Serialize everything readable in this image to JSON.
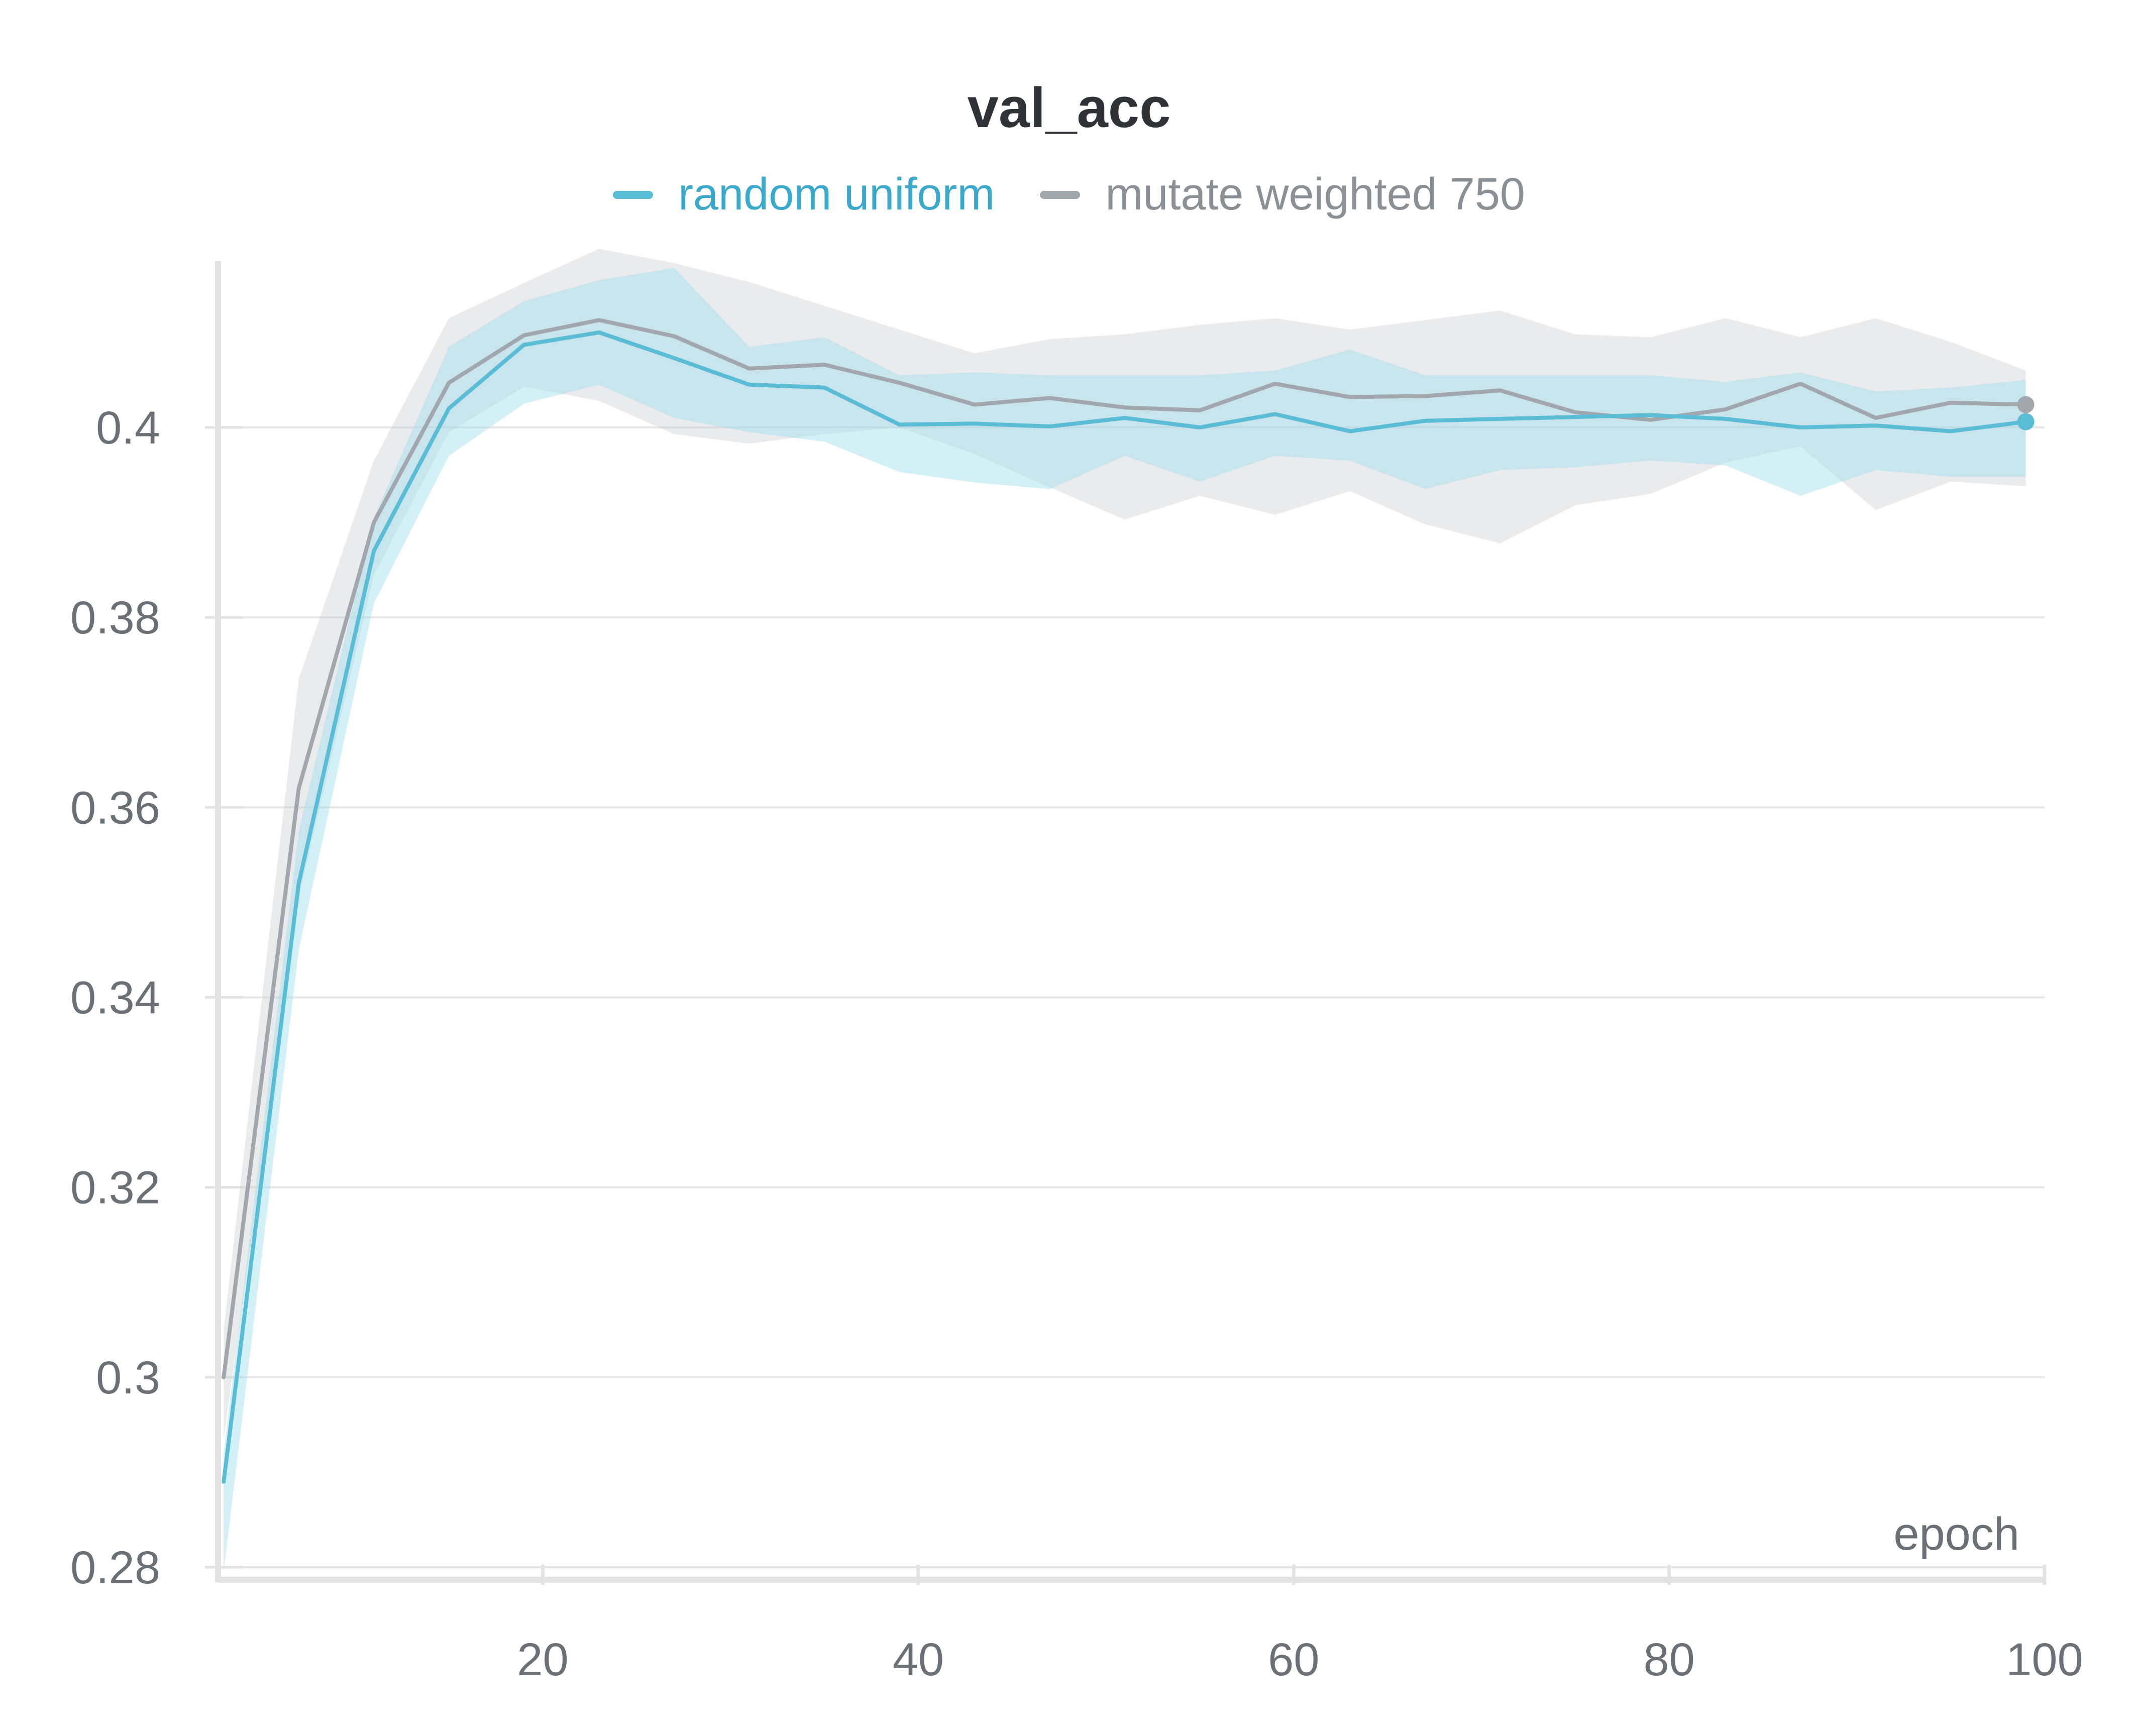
{
  "chart_data": {
    "type": "line",
    "title": "val_acc",
    "xlabel": "epoch",
    "ylabel": "",
    "xlim": [
      2.7,
      100
    ],
    "ylim": [
      0.28,
      0.4175
    ],
    "xticks": [
      20,
      40,
      60,
      80,
      100
    ],
    "xtick_labels": [
      "20",
      "40",
      "60",
      "80",
      "100"
    ],
    "yticks": [
      0.28,
      0.3,
      0.32,
      0.34,
      0.36,
      0.38,
      0.4
    ],
    "ytick_labels": [
      "0.28",
      "0.3",
      "0.32",
      "0.34",
      "0.36",
      "0.38",
      "0.4"
    ],
    "grid": true,
    "legend_position": "top-center",
    "x": [
      3,
      7,
      11,
      15,
      19,
      23,
      27,
      31,
      35,
      39,
      43,
      47,
      51,
      55,
      59,
      63,
      67,
      71,
      75,
      79,
      83,
      87,
      91,
      95,
      99
    ],
    "series": [
      {
        "name": "random uniform",
        "color": "#5bbcd6",
        "values": [
          0.289,
          0.352,
          0.387,
          0.402,
          0.4087,
          0.41,
          0.4073,
          0.4045,
          0.4042,
          0.4003,
          0.4004,
          0.4001,
          0.401,
          0.4,
          0.4014,
          0.3996,
          0.4007,
          0.4009,
          0.4011,
          0.4013,
          0.4009,
          0.4,
          0.4002,
          0.3996,
          0.4006
        ],
        "band_upper": [
          0.292,
          0.3575,
          0.3905,
          0.4085,
          0.4133,
          0.4155,
          0.4168,
          0.4085,
          0.4095,
          0.4055,
          0.4058,
          0.4055,
          0.4055,
          0.4055,
          0.406,
          0.4082,
          0.4055,
          0.4055,
          0.4055,
          0.4055,
          0.4048,
          0.4058,
          0.4038,
          0.4042,
          0.405
        ],
        "band_lower": [
          0.2795,
          0.345,
          0.3815,
          0.397,
          0.4025,
          0.4045,
          0.401,
          0.3995,
          0.3985,
          0.3953,
          0.3942,
          0.3935,
          0.397,
          0.3943,
          0.397,
          0.3965,
          0.3935,
          0.3955,
          0.3958,
          0.3965,
          0.396,
          0.3928,
          0.3955,
          0.3948,
          0.3948
        ]
      },
      {
        "name": "mutate weighted 750",
        "color": "#a2a7ad",
        "values": [
          0.3,
          0.362,
          0.39,
          0.4047,
          0.4097,
          0.4113,
          0.4096,
          0.4062,
          0.4066,
          0.4047,
          0.4024,
          0.4031,
          0.4021,
          0.4018,
          0.4046,
          0.4032,
          0.4033,
          0.4039,
          0.4016,
          0.4008,
          0.4019,
          0.4046,
          0.401,
          0.4026,
          0.4024
        ],
        "band_upper": [
          0.305,
          0.3735,
          0.3965,
          0.4115,
          0.4152,
          0.4188,
          0.4173,
          0.4153,
          0.4128,
          0.4103,
          0.4078,
          0.4093,
          0.4098,
          0.4108,
          0.4115,
          0.4103,
          0.4113,
          0.4123,
          0.4098,
          0.4095,
          0.4115,
          0.4095,
          0.4115,
          0.409,
          0.406
        ],
        "band_lower": [
          0.2935,
          0.3505,
          0.3845,
          0.3995,
          0.4043,
          0.4028,
          0.3993,
          0.3983,
          0.3993,
          0.4,
          0.3972,
          0.3937,
          0.3903,
          0.3928,
          0.3908,
          0.3933,
          0.3898,
          0.3878,
          0.3918,
          0.393,
          0.3963,
          0.398,
          0.3913,
          0.3943,
          0.3938
        ]
      }
    ]
  }
}
